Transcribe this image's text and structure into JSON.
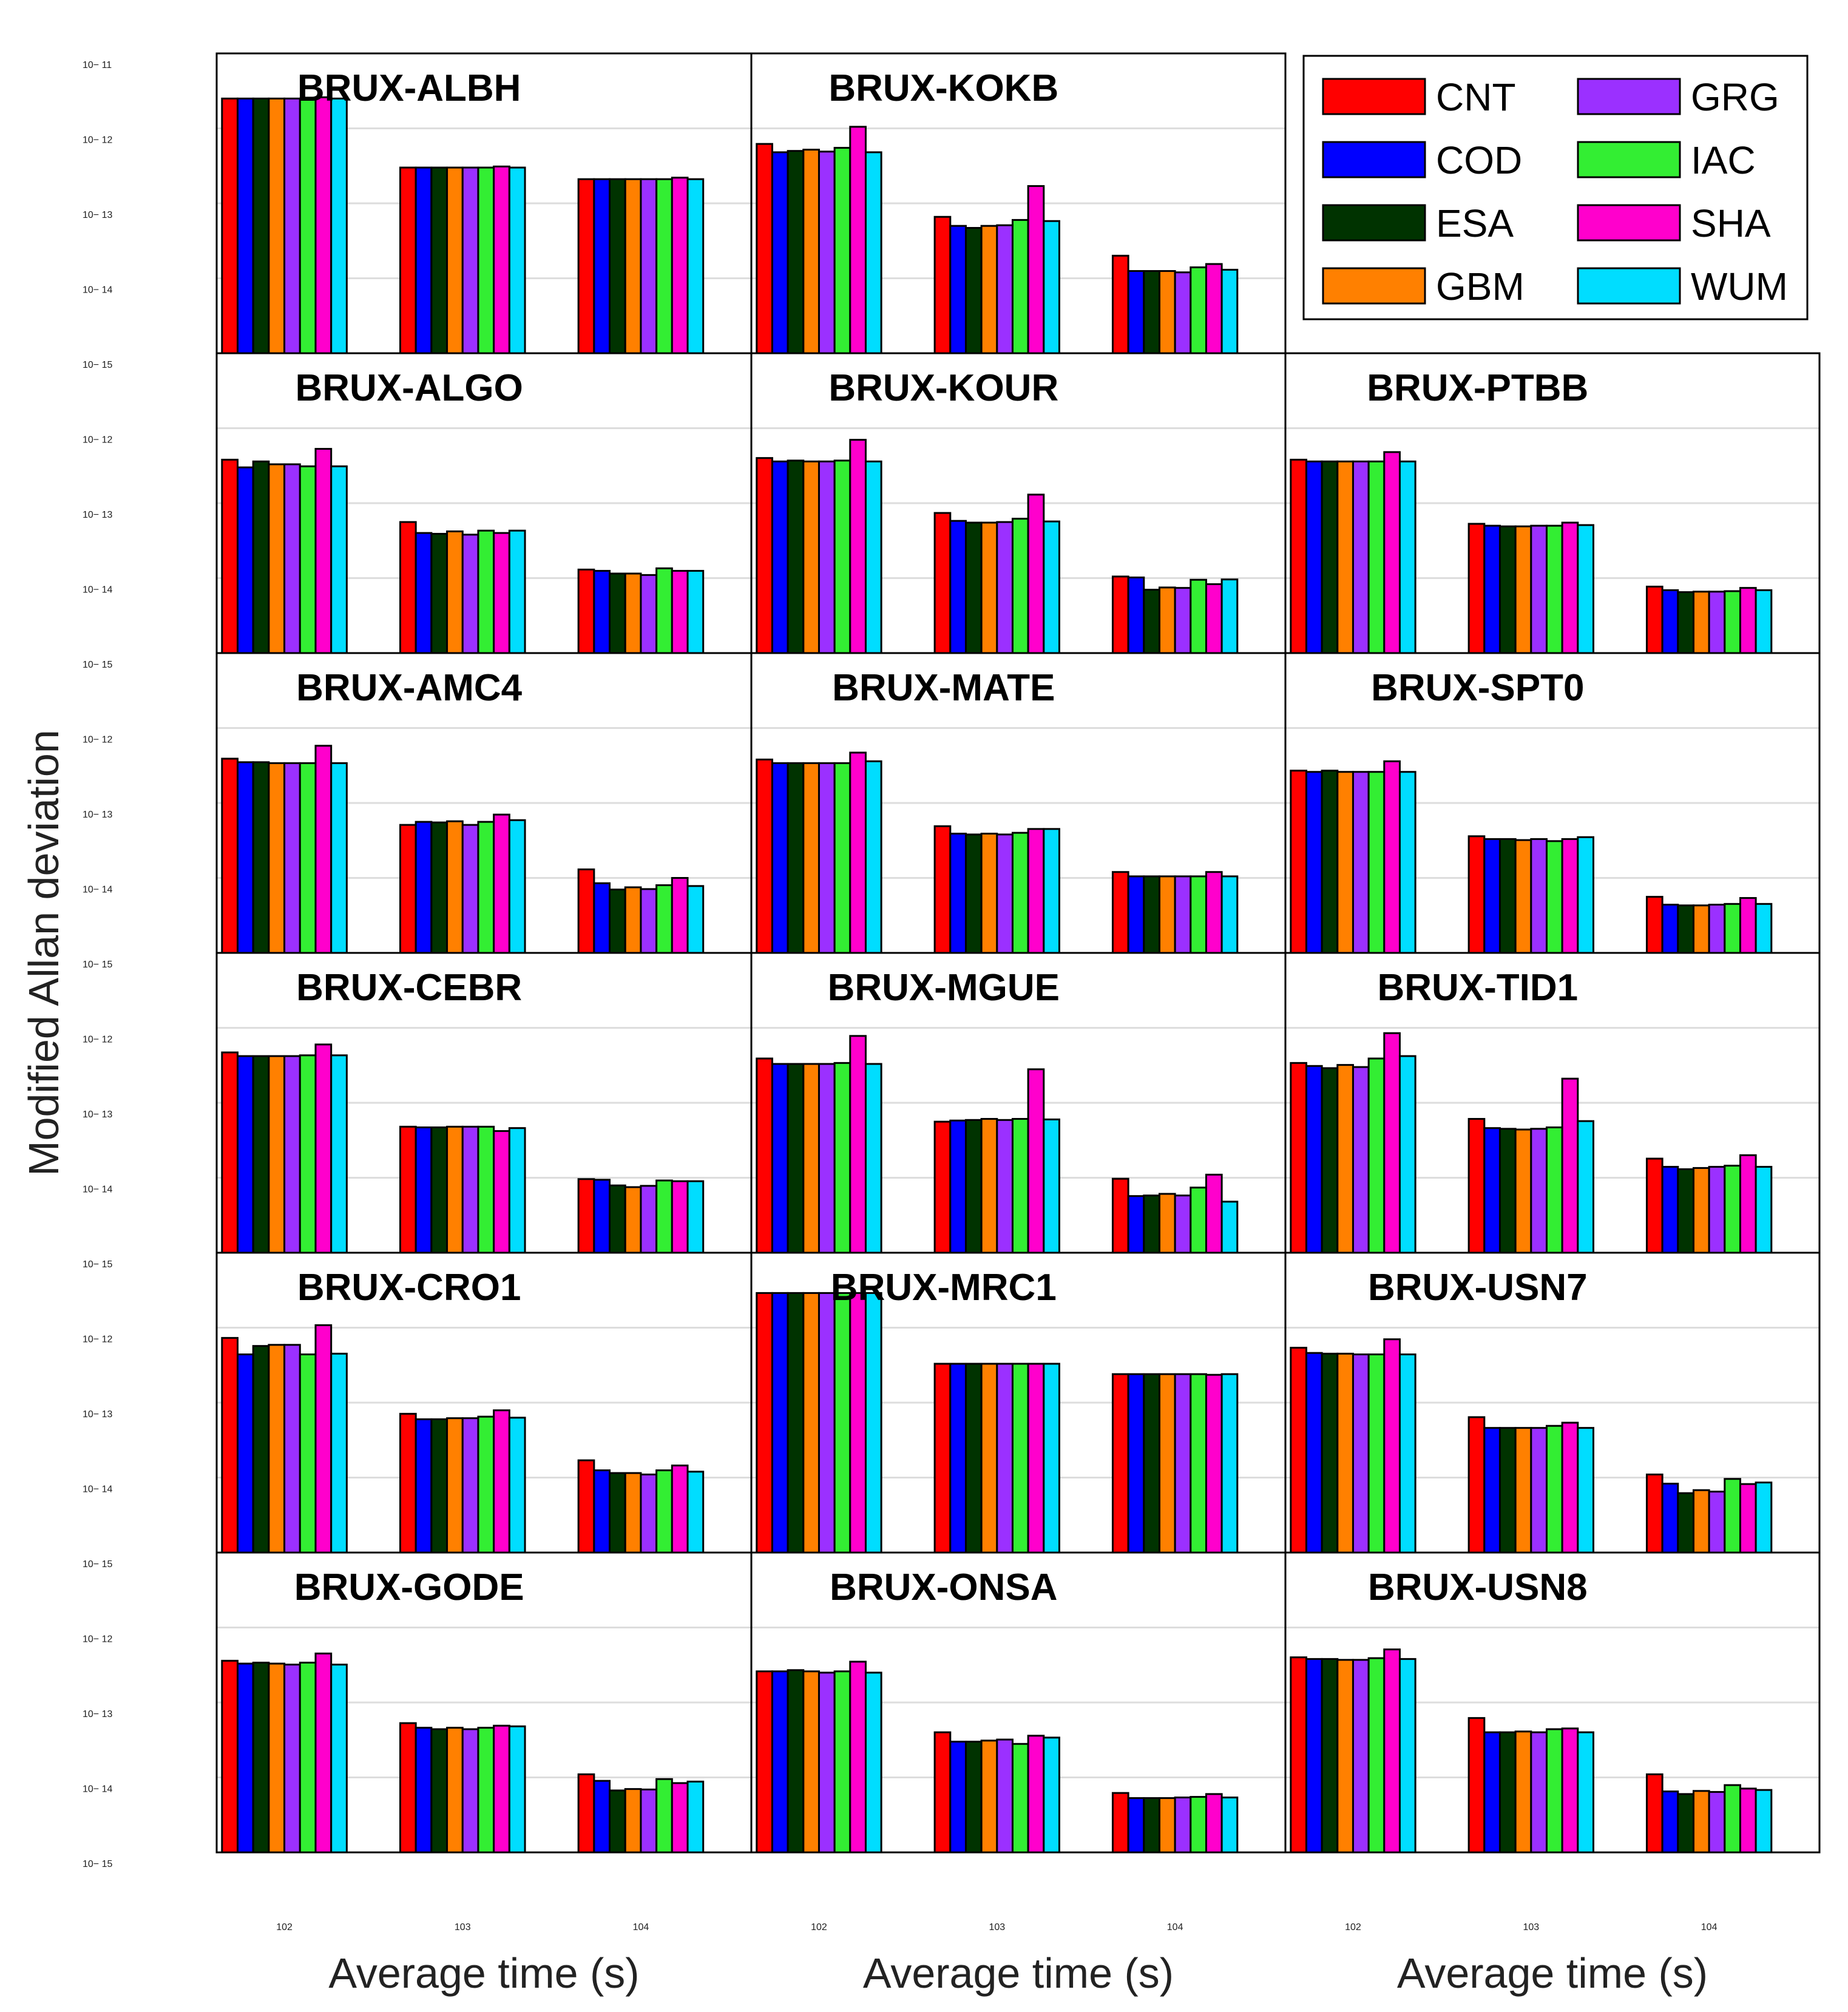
{
  "chart_data": {
    "type": "bar",
    "scale": "log",
    "ylabel": "Modified Allan deviation",
    "xlabel": "Average time (s)",
    "categories": [
      100,
      1000,
      10000
    ],
    "category_ticks": [
      {
        "base": "10",
        "exp": "2"
      },
      {
        "base": "10",
        "exp": "3"
      },
      {
        "base": "10",
        "exp": "4"
      }
    ],
    "ylim": [
      1e-15,
      1e-11
    ],
    "y_ticks": [
      {
        "base": "10",
        "exp": "− 11",
        "value": 1e-11
      },
      {
        "base": "10",
        "exp": "− 12",
        "value": 1e-12
      },
      {
        "base": "10",
        "exp": "− 13",
        "value": 1e-13
      },
      {
        "base": "10",
        "exp": "− 14",
        "value": 1e-14
      },
      {
        "base": "10",
        "exp": "− 15",
        "value": 1e-15
      }
    ],
    "grid": true,
    "legend_position": "top-right",
    "series": [
      {
        "name": "CNT",
        "color": "#ff0000"
      },
      {
        "name": "COD",
        "color": "#0000ff"
      },
      {
        "name": "ESA",
        "color": "#003300"
      },
      {
        "name": "GBM",
        "color": "#ff8000"
      },
      {
        "name": "GRG",
        "color": "#9b30ff"
      },
      {
        "name": "IAC",
        "color": "#33ee33"
      },
      {
        "name": "SHA",
        "color": "#ff00cc"
      },
      {
        "name": "WUM",
        "color": "#00ddff"
      }
    ],
    "panels": [
      {
        "title": "BRUX-ALBH",
        "row": 0,
        "col": 0,
        "values": [
          [
            2.5e-12,
            2.5e-12,
            2.5e-12,
            2.5e-12,
            2.5e-12,
            2.5e-12,
            2.6e-12,
            2.5e-12
          ],
          [
            3e-13,
            3e-13,
            3e-13,
            3e-13,
            3e-13,
            3e-13,
            3.1e-13,
            3e-13
          ],
          [
            2.1e-13,
            2.1e-13,
            2.1e-13,
            2.1e-13,
            2.1e-13,
            2.1e-13,
            2.2e-13,
            2.1e-13
          ]
        ]
      },
      {
        "title": "BRUX-KOKB",
        "row": 0,
        "col": 1,
        "values": [
          [
            6.2e-13,
            4.8e-13,
            5e-13,
            5.2e-13,
            4.9e-13,
            5.5e-13,
            1.05e-12,
            4.8e-13
          ],
          [
            6.6e-14,
            5e-14,
            4.7e-14,
            5e-14,
            5.1e-14,
            6e-14,
            1.7e-13,
            5.8e-14
          ],
          [
            2e-14,
            1.25e-14,
            1.25e-14,
            1.25e-14,
            1.2e-14,
            1.4e-14,
            1.55e-14,
            1.3e-14
          ]
        ]
      },
      {
        "title": "BRUX-ALGO",
        "row": 1,
        "col": 0,
        "values": [
          [
            3.8e-13,
            3e-13,
            3.6e-13,
            3.3e-13,
            3.3e-13,
            3.1e-13,
            5.3e-13,
            3.1e-13
          ],
          [
            5.6e-14,
            4e-14,
            3.9e-14,
            4.2e-14,
            3.8e-14,
            4.3e-14,
            4e-14,
            4.3e-14
          ],
          [
            1.3e-14,
            1.25e-14,
            1.15e-14,
            1.15e-14,
            1.1e-14,
            1.35e-14,
            1.25e-14,
            1.25e-14
          ]
        ]
      },
      {
        "title": "BRUX-KOUR",
        "row": 1,
        "col": 1,
        "values": [
          [
            4e-13,
            3.6e-13,
            3.7e-13,
            3.6e-13,
            3.6e-13,
            3.7e-13,
            7e-13,
            3.6e-13
          ],
          [
            7.4e-14,
            5.8e-14,
            5.5e-14,
            5.5e-14,
            5.6e-14,
            6.2e-14,
            1.3e-13,
            5.7e-14
          ],
          [
            1.05e-14,
            1.02e-14,
            7e-15,
            7.5e-15,
            7.4e-15,
            9.5e-15,
            8.3e-15,
            9.6e-15
          ]
        ]
      },
      {
        "title": "BRUX-PTBB",
        "row": 1,
        "col": 2,
        "values": [
          [
            3.8e-13,
            3.6e-13,
            3.6e-13,
            3.6e-13,
            3.6e-13,
            3.6e-13,
            4.8e-13,
            3.6e-13
          ],
          [
            5.3e-14,
            5e-14,
            4.9e-14,
            4.9e-14,
            5e-14,
            5e-14,
            5.5e-14,
            5.1e-14
          ],
          [
            7.7e-15,
            6.9e-15,
            6.5e-15,
            6.6e-15,
            6.6e-15,
            6.7e-15,
            7.4e-15,
            6.9e-15
          ]
        ]
      },
      {
        "title": "BRUX-AMC4",
        "row": 2,
        "col": 0,
        "values": [
          [
            3.9e-13,
            3.5e-13,
            3.5e-13,
            3.4e-13,
            3.4e-13,
            3.4e-13,
            5.8e-13,
            3.4e-13
          ],
          [
            5.1e-14,
            5.6e-14,
            5.5e-14,
            5.7e-14,
            5.1e-14,
            5.6e-14,
            7e-14,
            5.9e-14
          ],
          [
            1.3e-14,
            8.5e-15,
            7e-15,
            7.5e-15,
            7.1e-15,
            8e-15,
            1e-14,
            7.8e-15
          ]
        ]
      },
      {
        "title": "BRUX-MATE",
        "row": 2,
        "col": 1,
        "values": [
          [
            3.8e-13,
            3.4e-13,
            3.4e-13,
            3.4e-13,
            3.4e-13,
            3.4e-13,
            4.7e-13,
            3.6e-13
          ],
          [
            4.9e-14,
            3.9e-14,
            3.8e-14,
            3.9e-14,
            3.8e-14,
            4e-14,
            4.5e-14,
            4.5e-14
          ],
          [
            1.2e-14,
            1.05e-14,
            1.05e-14,
            1.05e-14,
            1.05e-14,
            1.05e-14,
            1.2e-14,
            1.05e-14
          ]
        ]
      },
      {
        "title": "BRUX-SPT0",
        "row": 2,
        "col": 2,
        "values": [
          [
            2.7e-13,
            2.6e-13,
            2.7e-13,
            2.6e-13,
            2.6e-13,
            2.6e-13,
            3.6e-13,
            2.6e-13
          ],
          [
            3.6e-14,
            3.3e-14,
            3.3e-14,
            3.2e-14,
            3.3e-14,
            3.1e-14,
            3.3e-14,
            3.5e-14
          ],
          [
            5.6e-15,
            4.4e-15,
            4.3e-15,
            4.3e-15,
            4.4e-15,
            4.5e-15,
            5.4e-15,
            4.5e-15
          ]
        ]
      },
      {
        "title": "BRUX-CEBR",
        "row": 3,
        "col": 0,
        "values": [
          [
            4.7e-13,
            4.2e-13,
            4.2e-13,
            4.2e-13,
            4.2e-13,
            4.3e-13,
            6e-13,
            4.3e-13
          ],
          [
            4.8e-14,
            4.7e-14,
            4.7e-14,
            4.8e-14,
            4.8e-14,
            4.8e-14,
            4.2e-14,
            4.6e-14
          ],
          [
            9.6e-15,
            9.4e-15,
            7.9e-15,
            7.5e-15,
            7.8e-15,
            9.2e-15,
            9e-15,
            9e-15
          ]
        ]
      },
      {
        "title": "BRUX-MGUE",
        "row": 3,
        "col": 1,
        "values": [
          [
            3.9e-13,
            3.3e-13,
            3.3e-13,
            3.3e-13,
            3.3e-13,
            3.4e-13,
            7.8e-13,
            3.3e-13
          ],
          [
            5.6e-14,
            5.8e-14,
            5.9e-14,
            6.1e-14,
            5.9e-14,
            6.1e-14,
            2.8e-13,
            6e-14
          ],
          [
            9.7e-15,
            5.7e-15,
            5.8e-15,
            6.1e-15,
            5.8e-15,
            7.4e-15,
            1.1e-14,
            4.8e-15
          ]
        ]
      },
      {
        "title": "BRUX-TID1",
        "row": 3,
        "col": 2,
        "values": [
          [
            3.4e-13,
            3.1e-13,
            2.9e-13,
            3.2e-13,
            3e-13,
            3.9e-13,
            8.5e-13,
            4.2e-13
          ],
          [
            6.1e-14,
            4.6e-14,
            4.5e-14,
            4.4e-14,
            4.5e-14,
            4.7e-14,
            2.1e-13,
            5.7e-14
          ],
          [
            1.8e-14,
            1.4e-14,
            1.3e-14,
            1.35e-14,
            1.4e-14,
            1.45e-14,
            2e-14,
            1.4e-14
          ]
        ]
      },
      {
        "title": "BRUX-CRO1",
        "row": 4,
        "col": 0,
        "values": [
          [
            7.3e-13,
            4.4e-13,
            5.7e-13,
            5.9e-13,
            5.9e-13,
            4.4e-13,
            1.08e-12,
            4.5e-13
          ],
          [
            7.1e-14,
            6e-14,
            6e-14,
            6.2e-14,
            6.2e-14,
            6.5e-14,
            7.9e-14,
            6.3e-14
          ],
          [
            1.7e-14,
            1.25e-14,
            1.15e-14,
            1.15e-14,
            1.1e-14,
            1.25e-14,
            1.45e-14,
            1.2e-14
          ]
        ]
      },
      {
        "title": "BRUX-MRC1",
        "row": 4,
        "col": 1,
        "values": [
          [
            2.9e-12,
            2.9e-12,
            2.9e-12,
            2.9e-12,
            2.9e-12,
            2.9e-12,
            2.9e-12,
            2.9e-12
          ],
          [
            3.3e-13,
            3.3e-13,
            3.3e-13,
            3.3e-13,
            3.3e-13,
            3.3e-13,
            3.3e-13,
            3.3e-13
          ],
          [
            2.4e-13,
            2.4e-13,
            2.4e-13,
            2.4e-13,
            2.4e-13,
            2.4e-13,
            2.35e-13,
            2.4e-13
          ]
        ]
      },
      {
        "title": "BRUX-USN7",
        "row": 4,
        "col": 2,
        "values": [
          [
            5.4e-13,
            4.6e-13,
            4.5e-13,
            4.5e-13,
            4.4e-13,
            4.4e-13,
            7e-13,
            4.4e-13
          ],
          [
            6.4e-14,
            4.6e-14,
            4.6e-14,
            4.6e-14,
            4.6e-14,
            4.9e-14,
            5.4e-14,
            4.6e-14
          ],
          [
            1.1e-14,
            8.3e-15,
            6.2e-15,
            6.8e-15,
            6.5e-15,
            9.6e-15,
            8.2e-15,
            8.6e-15
          ]
        ]
      },
      {
        "title": "BRUX-GODE",
        "row": 5,
        "col": 0,
        "values": [
          [
            3.6e-13,
            3.3e-13,
            3.4e-13,
            3.3e-13,
            3.2e-13,
            3.4e-13,
            4.5e-13,
            3.2e-13
          ],
          [
            5.3e-14,
            4.6e-14,
            4.4e-14,
            4.6e-14,
            4.4e-14,
            4.6e-14,
            4.9e-14,
            4.8e-14
          ],
          [
            1.1e-14,
            9e-15,
            6.7e-15,
            7e-15,
            6.9e-15,
            9.5e-15,
            8.4e-15,
            8.8e-15
          ]
        ]
      },
      {
        "title": "BRUX-ONSA",
        "row": 5,
        "col": 1,
        "values": [
          [
            2.6e-13,
            2.6e-13,
            2.7e-13,
            2.6e-13,
            2.5e-13,
            2.6e-13,
            3.5e-13,
            2.5e-13
          ],
          [
            4e-14,
            3e-14,
            3e-14,
            3.1e-14,
            3.2e-14,
            2.8e-14,
            3.6e-14,
            3.4e-14
          ],
          [
            6.2e-15,
            5.3e-15,
            5.3e-15,
            5.3e-15,
            5.4e-15,
            5.5e-15,
            6e-15,
            5.4e-15
          ]
        ]
      },
      {
        "title": "BRUX-USN8",
        "row": 5,
        "col": 2,
        "values": [
          [
            4e-13,
            3.8e-13,
            3.8e-13,
            3.7e-13,
            3.7e-13,
            3.9e-13,
            5.1e-13,
            3.8e-13
          ],
          [
            6.2e-14,
            4e-14,
            4e-14,
            4.1e-14,
            4e-14,
            4.4e-14,
            4.5e-14,
            4e-14
          ],
          [
            1.1e-14,
            6.5e-15,
            6e-15,
            6.6e-15,
            6.4e-15,
            7.9e-15,
            7.1e-15,
            6.8e-15
          ]
        ]
      }
    ]
  }
}
